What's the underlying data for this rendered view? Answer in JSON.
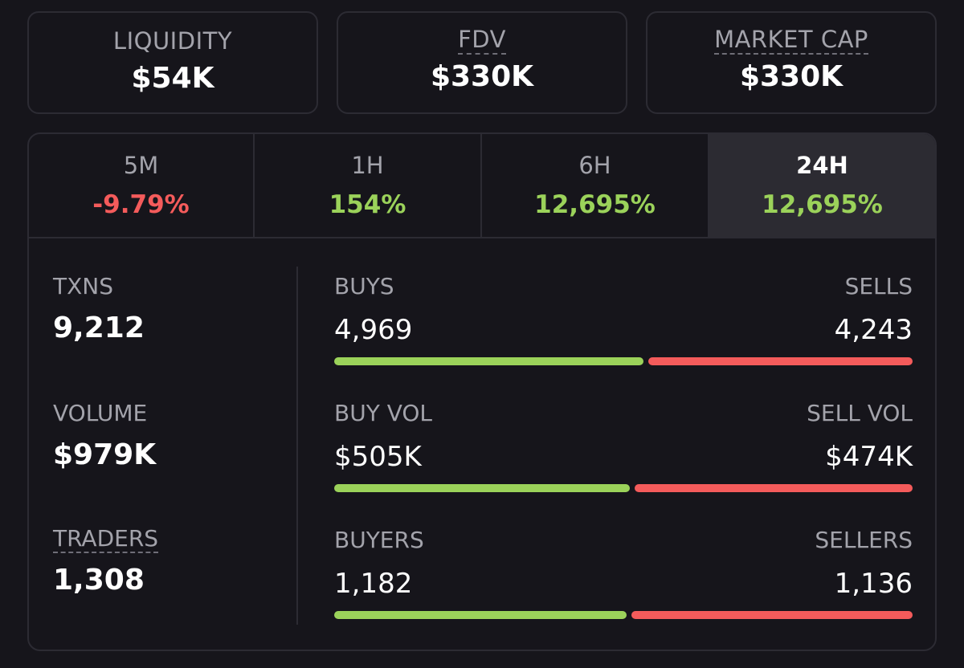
{
  "cards": [
    {
      "label": "LIQUIDITY",
      "value": "$54K"
    },
    {
      "label": "FDV",
      "value": "$330K"
    },
    {
      "label": "MARKET CAP",
      "value": "$330K"
    }
  ],
  "tabs": [
    {
      "label": "5M",
      "value": "-9.79%",
      "trend": "negative"
    },
    {
      "label": "1H",
      "value": "154%",
      "trend": "positive"
    },
    {
      "label": "6H",
      "value": "12,695%",
      "trend": "positive"
    },
    {
      "label": "24H",
      "value": "12,695%",
      "trend": "positive",
      "selected": true
    }
  ],
  "metrics": {
    "txns": {
      "label": "TXNS",
      "value": "9,212"
    },
    "volume": {
      "label": "VOLUME",
      "value": "$979K"
    },
    "traders": {
      "label": "TRADERS",
      "value": "1,308"
    }
  },
  "pairs": {
    "txns": {
      "left_label": "BUYS",
      "left_value": "4,969",
      "right_label": "SELLS",
      "right_value": "4,243",
      "buy_fraction": 0.539
    },
    "volume": {
      "left_label": "BUY VOL",
      "left_value": "$505K",
      "right_label": "SELL VOL",
      "right_value": "$474K",
      "buy_fraction": 0.516
    },
    "traders": {
      "left_label": "BUYERS",
      "left_value": "1,182",
      "right_label": "SELLERS",
      "right_value": "1,136",
      "buy_fraction": 0.51
    }
  },
  "colors": {
    "positive": "#9bd25a",
    "negative": "#f45b5b",
    "background": "#16151b",
    "border": "#2c2b33"
  }
}
